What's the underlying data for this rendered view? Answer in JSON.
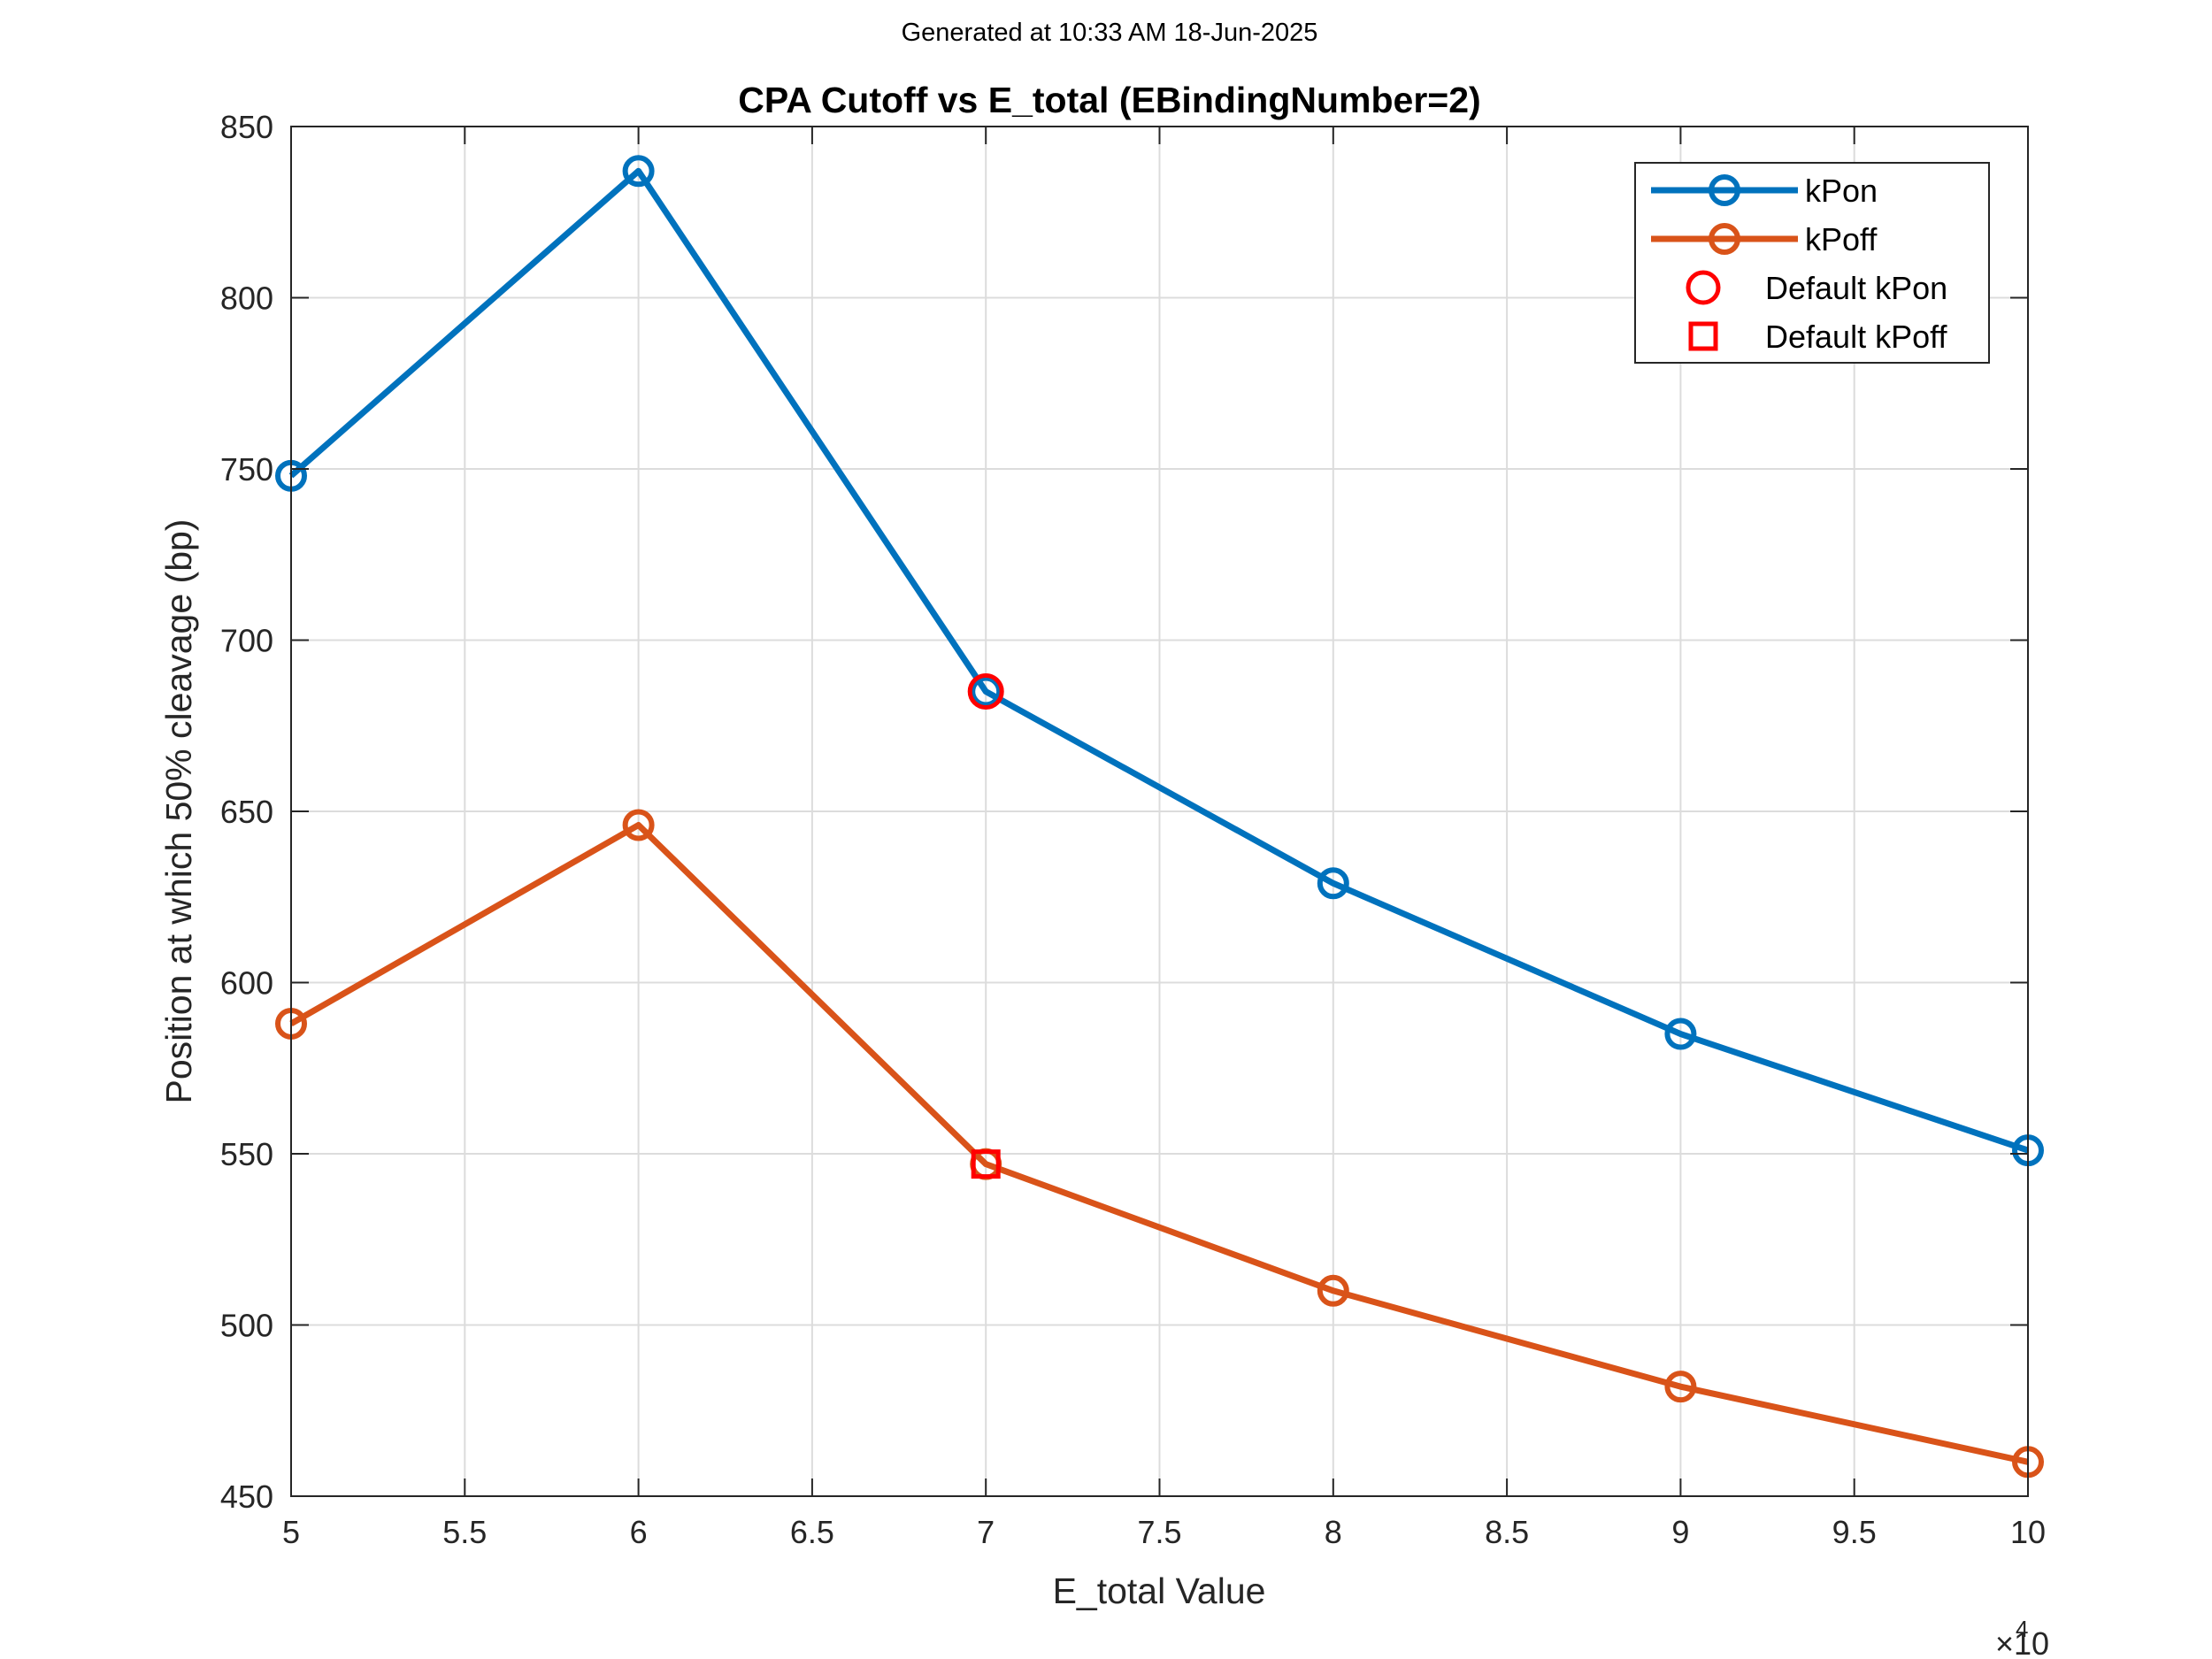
{
  "header": {
    "caption": "Generated at 10:33 AM 18-Jun-2025"
  },
  "chart_data": {
    "type": "line",
    "title": "CPA Cutoff vs E_total (EBindingNumber=2)",
    "xlabel": "E_total Value",
    "ylabel": "Position at which 50% cleavage (bp)",
    "x_multiplier_label": "×10",
    "x_multiplier_exponent": "4",
    "xlim": [
      5,
      10
    ],
    "ylim": [
      450,
      850
    ],
    "xticks": [
      "5",
      "5.5",
      "6",
      "6.5",
      "7",
      "7.5",
      "8",
      "8.5",
      "9",
      "9.5",
      "10"
    ],
    "yticks": [
      "450",
      "500",
      "550",
      "600",
      "650",
      "700",
      "750",
      "800",
      "850"
    ],
    "grid": true,
    "legend_position": "top-right",
    "x": [
      5,
      6,
      7,
      8,
      9,
      10
    ],
    "series": [
      {
        "name": "kPon",
        "values": [
          748,
          837,
          685,
          629,
          585,
          551
        ],
        "color": "#0072BD",
        "marker": "circle"
      },
      {
        "name": "kPoff",
        "values": [
          588,
          646,
          547,
          510,
          482,
          460
        ],
        "color": "#D95319",
        "marker": "circle"
      }
    ],
    "highlights": [
      {
        "name": "Default kPon",
        "x": 7,
        "y": 685,
        "color": "#FF0000",
        "marker": "circle"
      },
      {
        "name": "Default kPoff",
        "x": 7,
        "y": 547,
        "color": "#FF0000",
        "marker": "square"
      }
    ]
  }
}
